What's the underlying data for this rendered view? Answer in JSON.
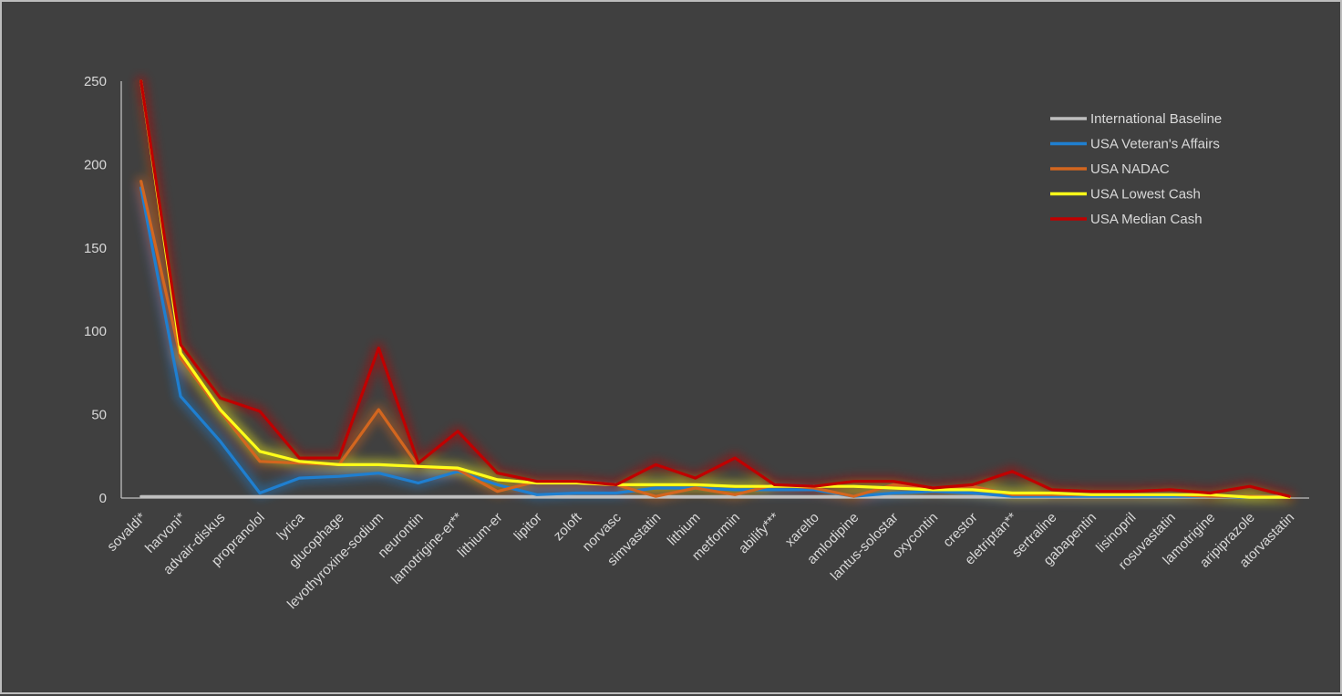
{
  "chart_data": {
    "type": "line",
    "title": "",
    "xlabel": "",
    "ylabel": "",
    "ylim": [
      0,
      250
    ],
    "yticks": [
      0,
      50,
      100,
      150,
      200,
      250
    ],
    "grid": false,
    "legend_position": "top-right",
    "categories": [
      "sovaldi*",
      "harvoni*",
      "advair-diskus",
      "propranolol",
      "lyrica",
      "glucophage",
      "levothyroxine-sodium",
      "neurontin",
      "lamotrigine-er**",
      "lithium-er",
      "lipitor",
      "zoloft",
      "norvasc",
      "simvastatin",
      "lithium",
      "metformin",
      "abilify***",
      "xarelto",
      "amlodipine",
      "lantus-solostar",
      "oxycontin",
      "crestor",
      "eletriptan**",
      "sertraline",
      "gabapentin",
      "lisinopril",
      "rosuvastatin",
      "lamotrigine",
      "aripiprazole",
      "atorvastatin"
    ],
    "series": [
      {
        "name": "International Baseline",
        "color": "#bfbfbf",
        "values": [
          1,
          1,
          1,
          1,
          1,
          1,
          1,
          1,
          1,
          1,
          1,
          1,
          1,
          1,
          1,
          1,
          1,
          1,
          1,
          1,
          1,
          1,
          1,
          1,
          1,
          1,
          1,
          1,
          1,
          1
        ]
      },
      {
        "name": "USA Veteran's Affairs",
        "color": "#1f7fd0",
        "values": [
          186,
          61,
          34,
          3,
          12,
          13,
          15,
          9,
          16,
          8,
          2,
          3,
          3,
          6,
          6,
          5,
          5,
          5,
          1,
          3,
          4,
          3,
          1,
          1,
          1,
          1,
          1,
          1,
          0.5,
          0.5
        ]
      },
      {
        "name": "USA NADAC",
        "color": "#d3661f",
        "values": [
          190,
          84,
          52,
          22,
          21,
          20,
          53,
          19,
          17,
          4,
          10,
          10,
          8,
          1,
          6,
          2,
          8,
          6,
          1,
          8,
          6,
          7,
          2,
          2,
          2,
          2,
          2,
          1,
          1,
          0.5
        ]
      },
      {
        "name": "USA Lowest Cash",
        "color": "#ffff19",
        "values": [
          250,
          87,
          53,
          28,
          22,
          20,
          20,
          19,
          18,
          11,
          9,
          9,
          8,
          8,
          8,
          7,
          7,
          7,
          7,
          6,
          5,
          5,
          3,
          3,
          2,
          2,
          2,
          2,
          0.5,
          0.5
        ]
      },
      {
        "name": "USA Median Cash",
        "color": "#c00000",
        "values": [
          250,
          92,
          60,
          52,
          24,
          24,
          90,
          21,
          40,
          15,
          10,
          10,
          8,
          20,
          12,
          24,
          8,
          7,
          10,
          10,
          6,
          8,
          16,
          5,
          4,
          4,
          5,
          3,
          7,
          1
        ]
      }
    ]
  }
}
